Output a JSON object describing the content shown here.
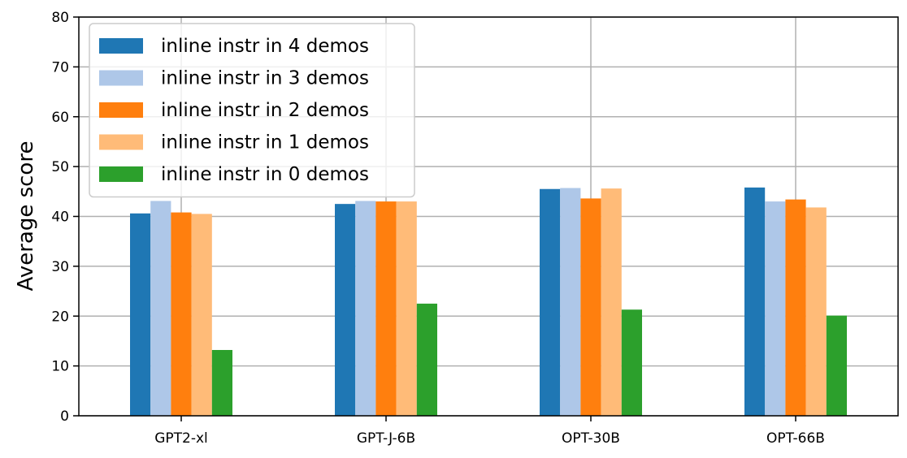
{
  "chart_data": {
    "type": "bar",
    "title": "",
    "xlabel": "",
    "ylabel": "Average score",
    "ylim": [
      0,
      80
    ],
    "yticks": [
      0,
      10,
      20,
      30,
      40,
      50,
      60,
      70,
      80
    ],
    "grid": true,
    "legend_position": "top-left",
    "categories": [
      "GPT2-xl",
      "GPT-J-6B",
      "OPT-30B",
      "OPT-66B"
    ],
    "series": [
      {
        "name": "inline instr in 4 demos",
        "color": "#1f77b4",
        "values": [
          40.6,
          42.5,
          45.5,
          45.8
        ]
      },
      {
        "name": "inline instr in 3 demos",
        "color": "#aec7e8",
        "values": [
          43.1,
          43.1,
          45.7,
          43.0
        ]
      },
      {
        "name": "inline instr in 2 demos",
        "color": "#ff7f0e",
        "values": [
          40.8,
          43.0,
          43.6,
          43.4
        ]
      },
      {
        "name": "inline instr in 1 demos",
        "color": "#ffbb78",
        "values": [
          40.5,
          43.0,
          45.6,
          41.8
        ]
      },
      {
        "name": "inline instr in 0 demos",
        "color": "#2ca02c",
        "values": [
          13.2,
          22.5,
          21.3,
          20.1
        ]
      }
    ]
  }
}
